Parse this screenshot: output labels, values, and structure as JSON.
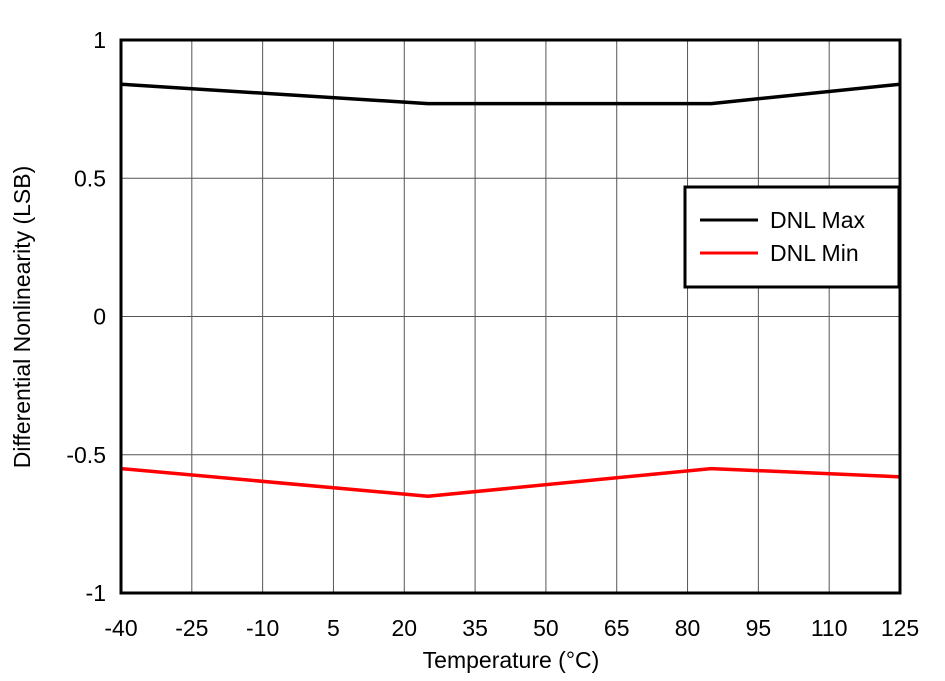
{
  "chart_data": {
    "type": "line",
    "title": "",
    "xlabel": "Temperature (°C)",
    "ylabel": "Differential Nonlinearity (LSB)",
    "xlim": [
      -40,
      125
    ],
    "ylim": [
      -1,
      1
    ],
    "xticks": [
      -40,
      -25,
      -10,
      5,
      20,
      35,
      50,
      65,
      80,
      95,
      110,
      125
    ],
    "xtick_labels": [
      "-40",
      "-25",
      "-10",
      "5",
      "20",
      "35",
      "50",
      "65",
      "80",
      "95",
      "110",
      "125"
    ],
    "yticks": [
      -1,
      -0.5,
      0,
      0.5,
      1
    ],
    "ytick_labels": [
      "-1",
      "-0.5",
      "0",
      "0.5",
      "1"
    ],
    "grid": true,
    "legend_position": "right",
    "series": [
      {
        "name": "DNL Max",
        "color": "#000000",
        "x": [
          -40,
          25,
          85,
          125
        ],
        "y": [
          0.84,
          0.77,
          0.77,
          0.84
        ]
      },
      {
        "name": "DNL Min",
        "color": "#ff0000",
        "x": [
          -40,
          25,
          85,
          125
        ],
        "y": [
          -0.55,
          -0.65,
          -0.55,
          -0.58
        ]
      }
    ]
  }
}
